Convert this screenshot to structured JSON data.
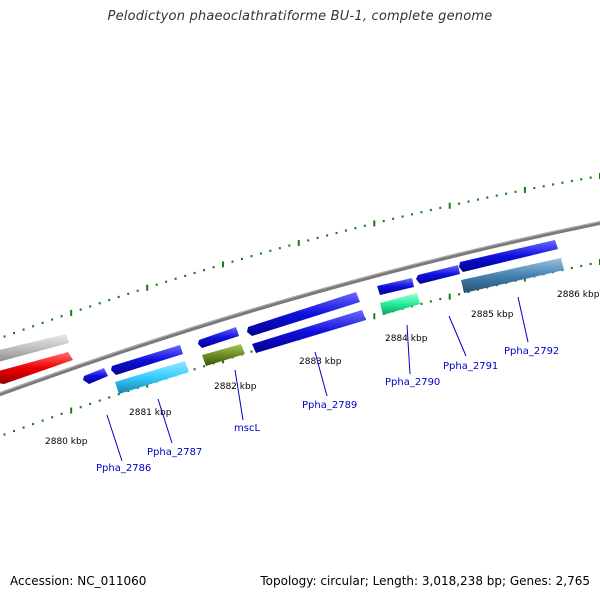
{
  "title": "Pelodictyon phaeoclathratiforme BU-1, complete genome",
  "footer": {
    "accession": "Accession: NC_011060",
    "summary": "Topology: circular; Length: 3,018,238 bp; Genes: 2,765"
  },
  "colors": {
    "backbone": "#808080",
    "tick": "#1a7a1a",
    "gene_label": "#0000c8",
    "forward_gene": "#1010e0",
    "reverse_gene": "#1010e0",
    "grey_gene": "#c0c0c0",
    "red_gene": "#ee0000",
    "cyan_gene": "#33ccff",
    "olive_gene": "#6b8e23",
    "teal_gene": "#22ee99",
    "steel_gene": "#4682b4"
  },
  "kbp_labels": [
    "2880 kbp",
    "2881 kbp",
    "2882 kbp",
    "2883 kbp",
    "2884 kbp",
    "2885 kbp",
    "2886 kbp"
  ],
  "gene_labels": [
    "Ppha_2786",
    "Ppha_2787",
    "mscL",
    "Ppha_2789",
    "Ppha_2790",
    "Ppha_2791",
    "Ppha_2792"
  ]
}
